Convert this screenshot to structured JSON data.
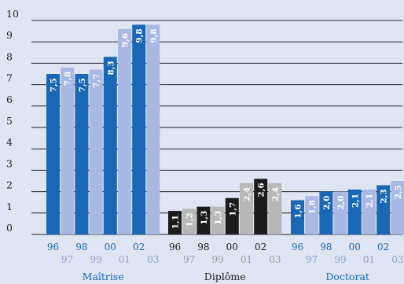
{
  "chart_data": {
    "type": "bar",
    "title": "",
    "xlabel": "",
    "ylabel": "",
    "ylim": [
      0,
      10
    ],
    "yticks": [
      "0",
      "1",
      "2",
      "3",
      "4",
      "5",
      "6",
      "7",
      "8",
      "9",
      "10"
    ],
    "grid": true,
    "legend": "none",
    "colors": {
      "maitrise_dark": "#1a67b5",
      "maitrise_light": "#a9b9e3",
      "diplome_dark": "#1c1c1c",
      "diplome_light": "#b8b8b8",
      "doctorat_dark": "#1a67b5",
      "doctorat_light": "#a9b9e3",
      "blue_text": "#1a67b5",
      "light_blue_text": "#8f9fce",
      "dark_text": "#1c1c1c",
      "gray_text": "#9a9a9a",
      "grid_line": "#222222",
      "background": "#dfe5f3"
    },
    "groups": [
      {
        "name": "Maîtrise",
        "palette": "maitrise",
        "years": [
          "96",
          "97",
          "98",
          "99",
          "00",
          "01",
          "02",
          "03"
        ],
        "values": [
          7.5,
          7.8,
          7.5,
          7.7,
          8.3,
          9.6,
          9.8,
          9.8
        ],
        "labels": [
          "7,5",
          "7,8",
          "7,5",
          "7,7",
          "8,3",
          "9,6",
          "9,8",
          "9,8"
        ]
      },
      {
        "name": "Diplôme",
        "palette": "diplome",
        "years": [
          "96",
          "97",
          "98",
          "99",
          "00",
          "01",
          "02",
          "03"
        ],
        "values": [
          1.1,
          1.2,
          1.3,
          1.3,
          1.7,
          2.4,
          2.6,
          2.4
        ],
        "labels": [
          "1,1",
          "1,2",
          "1,3",
          "1,3",
          "1,7",
          "2,4",
          "2,6",
          "2,4"
        ]
      },
      {
        "name": "Doctorat",
        "palette": "doctorat",
        "years": [
          "96",
          "97",
          "98",
          "99",
          "00",
          "01",
          "02",
          "03"
        ],
        "values": [
          1.6,
          1.8,
          2.0,
          2.0,
          2.1,
          2.1,
          2.3,
          2.5
        ],
        "labels": [
          "1,6",
          "1,8",
          "2,0",
          "2,0",
          "2,1",
          "2,1",
          "2,3",
          "2,5"
        ]
      }
    ]
  }
}
